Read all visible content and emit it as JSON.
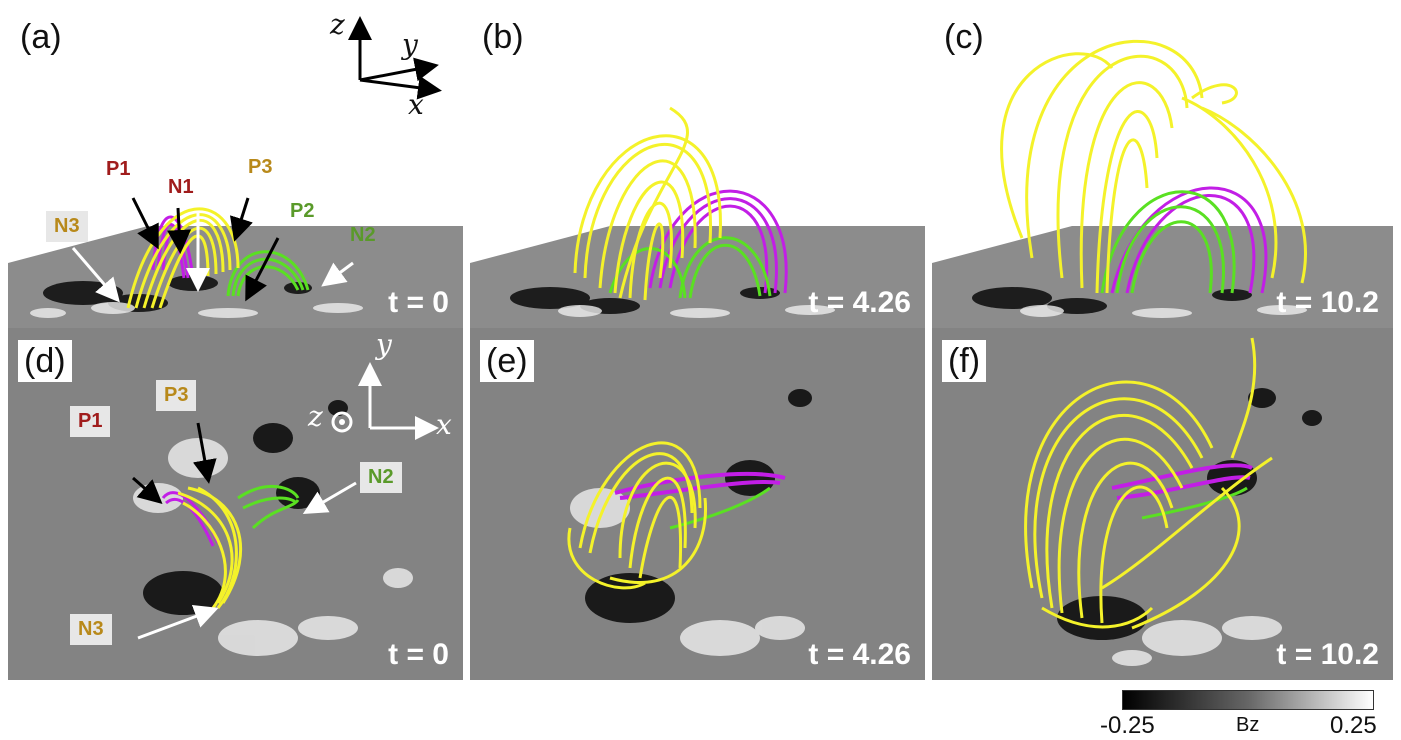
{
  "panels": {
    "a": {
      "label": "(a)",
      "time": "t = 0"
    },
    "b": {
      "label": "(b)",
      "time": "t = 4.26"
    },
    "c": {
      "label": "(c)",
      "time": "t = 10.2"
    },
    "d": {
      "label": "(d)",
      "time": "t = 0"
    },
    "e": {
      "label": "(e)",
      "time": "t = 4.26"
    },
    "f": {
      "label": "(f)",
      "time": "t = 10.2"
    }
  },
  "axes_3d": {
    "z": "z",
    "y": "y",
    "x": "x"
  },
  "axes_2d": {
    "z": "z",
    "y": "y",
    "x": "x"
  },
  "side_labels": {
    "P1": "P1",
    "N1": "N1",
    "P3": "P3",
    "P2": "P2",
    "N2": "N2",
    "N3": "N3"
  },
  "top_labels": {
    "P1": "P1",
    "P3": "P3",
    "N2": "N2",
    "N3": "N3"
  },
  "colorbar": {
    "min": "-0.25",
    "label": "Bz",
    "max": "0.25"
  },
  "colors": {
    "yellow": "#f4f22a",
    "magenta": "#c21ee6",
    "green": "#5ae022",
    "label_red": "#a01c1c",
    "label_gold": "#b8891a",
    "label_green": "#5a9a2a"
  }
}
